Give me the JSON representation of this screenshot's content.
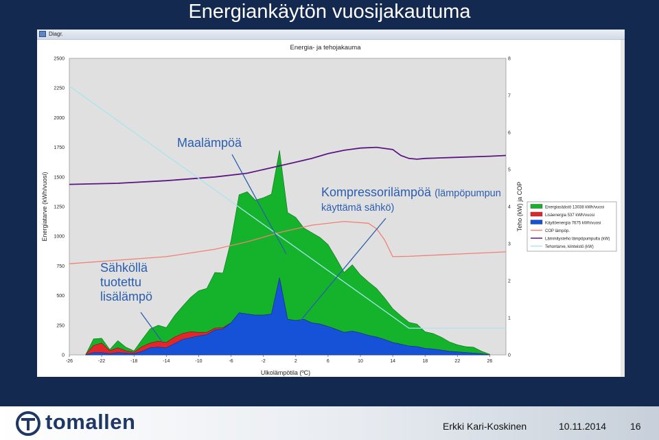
{
  "slide": {
    "title": "Energiankäytön vuosijakautuma",
    "footer": {
      "logo_text": "tomallen",
      "author": "Erkki Kari-Koskinen",
      "date": "10.11.2014",
      "page": "16"
    }
  },
  "window": {
    "title": "Diagr."
  },
  "annotations": {
    "ground_heat": "Maalämpöä",
    "compressor_heat": "Kompressorilämpöä",
    "compressor_heat_paren": "(lämpöpumpun",
    "compressor_heat_line2": "käyttämä sähkö)",
    "electric_heat": "Sähköllä\ntuotettu\nlisälämpö"
  },
  "colors": {
    "slide_background": "#14294f",
    "plot_background": "#e0e0e0",
    "energy_saving": "#15b32b",
    "additional_energy": "#e3262a",
    "consumed_energy": "#1552d8",
    "cop": "#f08075",
    "heat_pump_power": "#5b1582",
    "heating_demand": "#a9e4ef",
    "annotation_text": "#2a5db0"
  },
  "chart_data": {
    "type": "area",
    "title": "Energia- ja tehojakauma",
    "xlabel": "Ulkolämpötila (ºC)",
    "ylabel": "Energiatarve (kWh/vuosi)",
    "y2label": "Teho (kW) ja COP",
    "xlim": [
      -26,
      28
    ],
    "ylim": [
      0,
      2500
    ],
    "y2lim": [
      0,
      8
    ],
    "x_ticks": [
      -26,
      -22,
      -18,
      -14,
      -10,
      -6,
      -2,
      2,
      6,
      10,
      14,
      18,
      22,
      26
    ],
    "y_ticks": [
      0,
      250,
      500,
      750,
      1000,
      1250,
      1500,
      1750,
      2000,
      2250,
      2500
    ],
    "y2_ticks": [
      0,
      1,
      2,
      3,
      4,
      5,
      6,
      7,
      8
    ],
    "grid": false,
    "legend_position": "right",
    "x": [
      -24,
      -23,
      -22,
      -21,
      -20,
      -19,
      -18,
      -17,
      -16,
      -15,
      -14,
      -13,
      -12,
      -11,
      -10,
      -9,
      -8,
      -7,
      -6,
      -5,
      -4,
      -3,
      -2,
      -1,
      0,
      1,
      2,
      3,
      4,
      5,
      6,
      7,
      8,
      9,
      10,
      11,
      12,
      13,
      14,
      15,
      16,
      17,
      18,
      19,
      20,
      21,
      22,
      23,
      24,
      25,
      26
    ],
    "series": [
      {
        "name": "Energiasäästö 13038 kWh/vuosi",
        "kind": "area",
        "axis": "left",
        "values": [
          0,
          55,
          40,
          10,
          60,
          30,
          12,
          60,
          120,
          135,
          125,
          180,
          230,
          290,
          350,
          370,
          470,
          460,
          695,
          995,
          1030,
          970,
          990,
          1010,
          1075,
          900,
          870,
          770,
          760,
          730,
          690,
          600,
          505,
          560,
          490,
          450,
          410,
          350,
          285,
          240,
          200,
          190,
          140,
          130,
          110,
          80,
          60,
          50,
          50,
          20,
          5
        ]
      },
      {
        "name": "Lisäenergia 537 kWh/vuosi",
        "kind": "area",
        "axis": "left",
        "values": [
          0,
          60,
          80,
          25,
          40,
          20,
          12,
          40,
          40,
          50,
          45,
          55,
          50,
          50,
          30,
          20,
          15,
          10,
          0,
          0,
          0,
          0,
          0,
          0,
          0,
          0,
          0,
          0,
          0,
          0,
          0,
          0,
          0,
          0,
          0,
          0,
          0,
          0,
          0,
          0,
          0,
          0,
          0,
          0,
          0,
          0,
          0,
          0,
          0,
          0,
          0
        ]
      },
      {
        "name": "Käyttöenergia 7675 kWh/vuosi",
        "kind": "area",
        "axis": "left",
        "values": [
          0,
          20,
          20,
          10,
          20,
          15,
          10,
          30,
          60,
          65,
          60,
          95,
          130,
          145,
          160,
          170,
          210,
          220,
          270,
          355,
          345,
          335,
          335,
          345,
          650,
          300,
          290,
          300,
          270,
          260,
          240,
          215,
          190,
          200,
          185,
          165,
          150,
          130,
          105,
          90,
          75,
          70,
          55,
          50,
          40,
          30,
          25,
          20,
          15,
          10,
          0
        ]
      },
      {
        "name": "COP lämpöp.",
        "kind": "line",
        "axis": "right",
        "x": [
          -26,
          -14,
          -8,
          -4,
          0,
          4,
          8,
          11,
          12,
          13,
          14,
          16,
          18,
          20,
          22,
          26,
          28
        ],
        "values": [
          2.46,
          2.65,
          2.85,
          3.05,
          3.3,
          3.5,
          3.6,
          3.55,
          3.4,
          3.1,
          2.65,
          2.66,
          2.68,
          2.7,
          2.72,
          2.76,
          2.78
        ]
      },
      {
        "name": "Lämmitysteho lämpöpumpulta (kW)",
        "kind": "line",
        "axis": "right",
        "x": [
          -26,
          -20,
          -14,
          -8,
          -4,
          -2,
          0,
          2,
          4,
          6,
          8,
          10,
          12,
          14,
          15,
          16,
          17,
          18,
          22,
          26,
          28
        ],
        "values": [
          4.6,
          4.63,
          4.7,
          4.8,
          4.9,
          5.0,
          5.1,
          5.2,
          5.3,
          5.43,
          5.52,
          5.58,
          5.6,
          5.54,
          5.38,
          5.3,
          5.28,
          5.3,
          5.33,
          5.36,
          5.38
        ]
      },
      {
        "name": "Tehontarve, kiinteistö (kW)",
        "kind": "line",
        "axis": "right",
        "x": [
          -26,
          16,
          26,
          28
        ],
        "values": [
          7.25,
          0.72,
          0.72,
          0.72
        ]
      }
    ]
  }
}
